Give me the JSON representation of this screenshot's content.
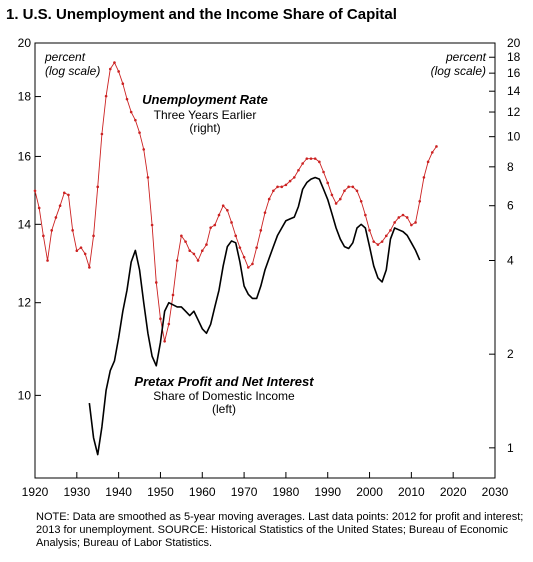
{
  "chart_data": {
    "type": "line",
    "title": "1. U.S. Unemployment and the Income Share of Capital",
    "left_axis": {
      "unit_label": [
        "percent",
        "(log scale)"
      ],
      "scale": "log",
      "ylim": [
        8.5,
        20
      ],
      "ticks": [
        10,
        12,
        14,
        16,
        18,
        20
      ]
    },
    "right_axis": {
      "unit_label": [
        "percent",
        "(log scale)"
      ],
      "scale": "log",
      "ylim": [
        0.8,
        20
      ],
      "ticks": [
        1,
        2,
        4,
        6,
        8,
        10,
        12,
        14,
        16,
        18,
        20
      ]
    },
    "x_axis": {
      "range": [
        1920,
        2030
      ],
      "ticks": [
        1920,
        1930,
        1940,
        1950,
        1960,
        1970,
        1980,
        1990,
        2000,
        2010,
        2020,
        2030
      ]
    },
    "series": [
      {
        "name": "Unemployment Rate",
        "sublabel": [
          "Three Years Earlier",
          "(right)"
        ],
        "axis": "right",
        "color": "#cc2222",
        "markers": true,
        "points": [
          [
            1920,
            6.7
          ],
          [
            1921,
            5.9
          ],
          [
            1922,
            4.8
          ],
          [
            1923,
            4.0
          ],
          [
            1924,
            5.0
          ],
          [
            1925,
            5.5
          ],
          [
            1926,
            6.0
          ],
          [
            1927,
            6.6
          ],
          [
            1928,
            6.5
          ],
          [
            1929,
            5.0
          ],
          [
            1930,
            4.3
          ],
          [
            1931,
            4.4
          ],
          [
            1932,
            4.2
          ],
          [
            1933,
            3.8
          ],
          [
            1934,
            4.8
          ],
          [
            1935,
            6.9
          ],
          [
            1936,
            10.2
          ],
          [
            1937,
            13.5
          ],
          [
            1938,
            16.5
          ],
          [
            1939,
            17.3
          ],
          [
            1940,
            16.2
          ],
          [
            1941,
            14.8
          ],
          [
            1942,
            13.2
          ],
          [
            1943,
            12.0
          ],
          [
            1944,
            11.3
          ],
          [
            1945,
            10.3
          ],
          [
            1946,
            9.1
          ],
          [
            1947,
            7.4
          ],
          [
            1948,
            5.2
          ],
          [
            1949,
            3.4
          ],
          [
            1950,
            2.6
          ],
          [
            1951,
            2.2
          ],
          [
            1952,
            2.5
          ],
          [
            1953,
            3.1
          ],
          [
            1954,
            4.0
          ],
          [
            1955,
            4.8
          ],
          [
            1956,
            4.6
          ],
          [
            1957,
            4.3
          ],
          [
            1958,
            4.2
          ],
          [
            1959,
            4.0
          ],
          [
            1960,
            4.3
          ],
          [
            1961,
            4.5
          ],
          [
            1962,
            5.1
          ],
          [
            1963,
            5.2
          ],
          [
            1964,
            5.6
          ],
          [
            1965,
            6.0
          ],
          [
            1966,
            5.8
          ],
          [
            1967,
            5.3
          ],
          [
            1968,
            4.8
          ],
          [
            1969,
            4.4
          ],
          [
            1970,
            4.1
          ],
          [
            1971,
            3.8
          ],
          [
            1972,
            3.9
          ],
          [
            1973,
            4.4
          ],
          [
            1974,
            5.0
          ],
          [
            1975,
            5.7
          ],
          [
            1976,
            6.3
          ],
          [
            1977,
            6.7
          ],
          [
            1978,
            6.9
          ],
          [
            1979,
            6.9
          ],
          [
            1980,
            7.0
          ],
          [
            1981,
            7.2
          ],
          [
            1982,
            7.4
          ],
          [
            1983,
            7.8
          ],
          [
            1984,
            8.2
          ],
          [
            1985,
            8.5
          ],
          [
            1986,
            8.5
          ],
          [
            1987,
            8.5
          ],
          [
            1988,
            8.3
          ],
          [
            1989,
            7.7
          ],
          [
            1990,
            7.1
          ],
          [
            1991,
            6.5
          ],
          [
            1992,
            6.1
          ],
          [
            1993,
            6.3
          ],
          [
            1994,
            6.7
          ],
          [
            1995,
            6.9
          ],
          [
            1996,
            6.9
          ],
          [
            1997,
            6.7
          ],
          [
            1998,
            6.2
          ],
          [
            1999,
            5.6
          ],
          [
            2000,
            5.0
          ],
          [
            2001,
            4.6
          ],
          [
            2002,
            4.5
          ],
          [
            2003,
            4.6
          ],
          [
            2004,
            4.8
          ],
          [
            2005,
            5.0
          ],
          [
            2006,
            5.3
          ],
          [
            2007,
            5.5
          ],
          [
            2008,
            5.6
          ],
          [
            2009,
            5.5
          ],
          [
            2010,
            5.2
          ],
          [
            2011,
            5.3
          ],
          [
            2012,
            6.2
          ],
          [
            2013,
            7.4
          ],
          [
            2014,
            8.3
          ],
          [
            2015,
            8.9
          ],
          [
            2016,
            9.3
          ]
        ]
      },
      {
        "name": "Pretax Profit and Net Interest",
        "sublabel": [
          "Share of Domestic Income",
          "(left)"
        ],
        "axis": "left",
        "color": "#000000",
        "markers": false,
        "points": [
          [
            1933,
            9.85
          ],
          [
            1934,
            9.2
          ],
          [
            1935,
            8.9
          ],
          [
            1936,
            9.4
          ],
          [
            1937,
            10.1
          ],
          [
            1938,
            10.5
          ],
          [
            1939,
            10.7
          ],
          [
            1940,
            11.2
          ],
          [
            1941,
            11.8
          ],
          [
            1942,
            12.3
          ],
          [
            1943,
            13.0
          ],
          [
            1944,
            13.3
          ],
          [
            1945,
            12.8
          ],
          [
            1946,
            12.0
          ],
          [
            1947,
            11.3
          ],
          [
            1948,
            10.8
          ],
          [
            1949,
            10.6
          ],
          [
            1950,
            11.1
          ],
          [
            1951,
            11.8
          ],
          [
            1952,
            12.0
          ],
          [
            1953,
            11.95
          ],
          [
            1954,
            11.9
          ],
          [
            1955,
            11.9
          ],
          [
            1956,
            11.8
          ],
          [
            1957,
            11.7
          ],
          [
            1958,
            11.8
          ],
          [
            1959,
            11.6
          ],
          [
            1960,
            11.4
          ],
          [
            1961,
            11.3
          ],
          [
            1962,
            11.5
          ],
          [
            1963,
            11.9
          ],
          [
            1964,
            12.3
          ],
          [
            1965,
            12.9
          ],
          [
            1966,
            13.4
          ],
          [
            1967,
            13.55
          ],
          [
            1968,
            13.5
          ],
          [
            1969,
            13.0
          ],
          [
            1970,
            12.4
          ],
          [
            1971,
            12.2
          ],
          [
            1972,
            12.1
          ],
          [
            1973,
            12.1
          ],
          [
            1974,
            12.4
          ],
          [
            1975,
            12.8
          ],
          [
            1976,
            13.1
          ],
          [
            1977,
            13.4
          ],
          [
            1978,
            13.7
          ],
          [
            1979,
            13.9
          ],
          [
            1980,
            14.1
          ],
          [
            1981,
            14.15
          ],
          [
            1982,
            14.2
          ],
          [
            1983,
            14.5
          ],
          [
            1984,
            15.0
          ],
          [
            1985,
            15.2
          ],
          [
            1986,
            15.3
          ],
          [
            1987,
            15.35
          ],
          [
            1988,
            15.3
          ],
          [
            1989,
            15.0
          ],
          [
            1990,
            14.7
          ],
          [
            1991,
            14.3
          ],
          [
            1992,
            13.9
          ],
          [
            1993,
            13.6
          ],
          [
            1994,
            13.4
          ],
          [
            1995,
            13.35
          ],
          [
            1996,
            13.5
          ],
          [
            1997,
            13.9
          ],
          [
            1998,
            14.0
          ],
          [
            1999,
            13.9
          ],
          [
            2000,
            13.4
          ],
          [
            2001,
            12.9
          ],
          [
            2002,
            12.6
          ],
          [
            2003,
            12.5
          ],
          [
            2004,
            12.8
          ],
          [
            2005,
            13.6
          ],
          [
            2006,
            13.9
          ],
          [
            2007,
            13.85
          ],
          [
            2008,
            13.8
          ],
          [
            2009,
            13.7
          ],
          [
            2010,
            13.5
          ],
          [
            2011,
            13.3
          ],
          [
            2012,
            13.05
          ]
        ]
      }
    ],
    "note": "NOTE: Data are smoothed as 5-year moving averages. Last data points: 2012 for profit and interest; 2013 for unemployment. SOURCE: Historical Statistics of the United States; Bureau of Economic Analysis; Bureau of Labor Statistics.",
    "grid": false,
    "legend": "inline labels"
  }
}
